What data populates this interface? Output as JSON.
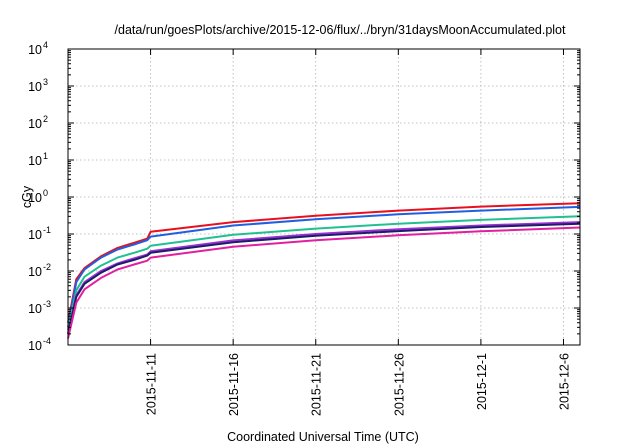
{
  "chart_data": {
    "type": "line",
    "title": "/data/run/goesPlots/archive/2015-12-06/flux/../bryn/31daysMoonAccumulated.plot",
    "xlabel": "Coordinated Universal Time (UTC)",
    "ylabel": "cGy",
    "yscale": "log",
    "ylim": [
      0.0001,
      10000
    ],
    "xlim": [
      "2015-11-06",
      "2015-12-07"
    ],
    "grid": true,
    "y_ticks": [
      {
        "base": "10",
        "exp": "-4",
        "value": 0.0001
      },
      {
        "base": "10",
        "exp": "-3",
        "value": 0.001
      },
      {
        "base": "10",
        "exp": "-2",
        "value": 0.01
      },
      {
        "base": "10",
        "exp": "-1",
        "value": 0.1
      },
      {
        "base": "10",
        "exp": "0",
        "value": 1
      },
      {
        "base": "10",
        "exp": "1",
        "value": 10
      },
      {
        "base": "10",
        "exp": "2",
        "value": 100
      },
      {
        "base": "10",
        "exp": "3",
        "value": 1000
      },
      {
        "base": "10",
        "exp": "4",
        "value": 10000
      }
    ],
    "x_ticks": [
      "2015-11-11",
      "2015-11-16",
      "2015-11-21",
      "2015-11-26",
      "2015-12-1",
      "2015-12-6"
    ],
    "x": [
      "2015-11-06",
      "2015-11-06.5",
      "2015-11-07",
      "2015-11-08",
      "2015-11-09",
      "2015-11-10",
      "2015-11-10.8",
      "2015-11-11",
      "2015-11-16",
      "2015-11-21",
      "2015-11-26",
      "2015-12-01",
      "2015-12-07"
    ],
    "series": [
      {
        "color": "#e8101e",
        "values": [
          0.0004,
          0.006,
          0.012,
          0.025,
          0.042,
          0.058,
          0.075,
          0.115,
          0.21,
          0.31,
          0.43,
          0.55,
          0.68
        ]
      },
      {
        "color": "#2060e0",
        "values": [
          0.0003,
          0.005,
          0.011,
          0.023,
          0.038,
          0.052,
          0.068,
          0.085,
          0.17,
          0.25,
          0.34,
          0.43,
          0.54
        ]
      },
      {
        "color": "#20c090",
        "values": [
          0.00025,
          0.003,
          0.007,
          0.014,
          0.023,
          0.031,
          0.04,
          0.048,
          0.095,
          0.14,
          0.19,
          0.24,
          0.3
        ]
      },
      {
        "color": "#9a30d0",
        "values": [
          0.0002,
          0.0022,
          0.005,
          0.01,
          0.016,
          0.022,
          0.028,
          0.034,
          0.067,
          0.1,
          0.135,
          0.17,
          0.21
        ]
      },
      {
        "color": "#1c1c6a",
        "values": [
          0.0002,
          0.002,
          0.0045,
          0.009,
          0.015,
          0.02,
          0.026,
          0.031,
          0.06,
          0.09,
          0.12,
          0.155,
          0.19
        ]
      },
      {
        "color": "#e020a0",
        "values": [
          0.00015,
          0.0014,
          0.0032,
          0.0065,
          0.011,
          0.015,
          0.019,
          0.023,
          0.045,
          0.068,
          0.092,
          0.118,
          0.15
        ]
      }
    ]
  }
}
